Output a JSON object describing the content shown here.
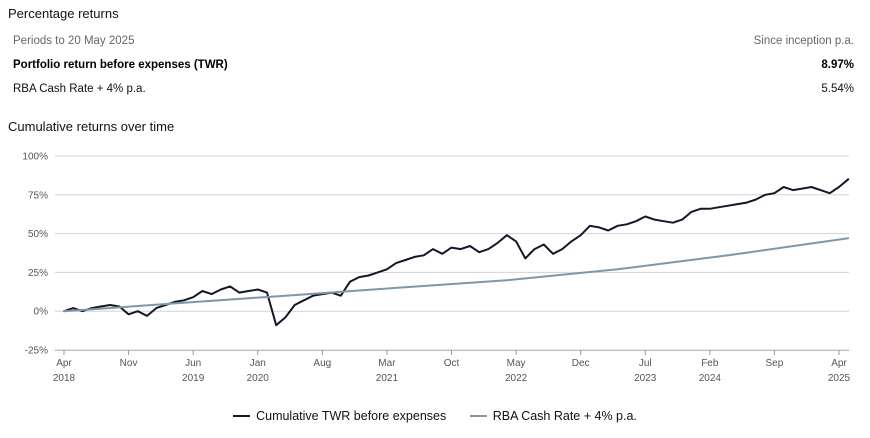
{
  "header": {
    "title": "Percentage returns",
    "period_label": "Periods to 20 May 2025",
    "column_label": "Since inception p.a."
  },
  "rows": [
    {
      "label": "Portfolio return before expenses (TWR)",
      "value": "8.97%"
    },
    {
      "label": "RBA Cash Rate + 4% p.a.",
      "value": "5.54%"
    }
  ],
  "chart_title": "Cumulative returns over time",
  "colors": {
    "twr": "#111827",
    "rba": "#7f98a8",
    "grid": "#d3d3d3"
  },
  "chart_data": {
    "type": "line",
    "title": "Cumulative returns over time",
    "xlabel": "",
    "ylabel": "",
    "ylim": [
      -25,
      100
    ],
    "y_ticks": [
      100,
      75,
      50,
      25,
      0,
      -25
    ],
    "y_tick_labels": [
      "100%",
      "75%",
      "50%",
      "25%",
      "0%",
      "-25%"
    ],
    "x_ticks": [
      {
        "date": "2018-04",
        "label": "Apr",
        "year": "2018"
      },
      {
        "date": "2018-11",
        "label": "Nov",
        "year": ""
      },
      {
        "date": "2019-06",
        "label": "Jun",
        "year": "2019"
      },
      {
        "date": "2020-01",
        "label": "Jan",
        "year": "2020"
      },
      {
        "date": "2020-08",
        "label": "Aug",
        "year": ""
      },
      {
        "date": "2021-03",
        "label": "Mar",
        "year": "2021"
      },
      {
        "date": "2021-10",
        "label": "Oct",
        "year": ""
      },
      {
        "date": "2022-05",
        "label": "May",
        "year": "2022"
      },
      {
        "date": "2022-12",
        "label": "Dec",
        "year": ""
      },
      {
        "date": "2023-07",
        "label": "Jul",
        "year": "2023"
      },
      {
        "date": "2024-02",
        "label": "Feb",
        "year": "2024"
      },
      {
        "date": "2024-09",
        "label": "Sep",
        "year": ""
      },
      {
        "date": "2025-04",
        "label": "Apr",
        "year": "2025"
      }
    ],
    "grid": true,
    "legend_position": "bottom",
    "series": [
      {
        "name": "Cumulative TWR before expenses",
        "color": "#111827",
        "points": [
          [
            "2018-04",
            0
          ],
          [
            "2018-05",
            2
          ],
          [
            "2018-06",
            0
          ],
          [
            "2018-07",
            2
          ],
          [
            "2018-08",
            3
          ],
          [
            "2018-09",
            4
          ],
          [
            "2018-10",
            3
          ],
          [
            "2018-11",
            -2
          ],
          [
            "2018-12",
            0
          ],
          [
            "2019-01",
            -3
          ],
          [
            "2019-02",
            2
          ],
          [
            "2019-03",
            4
          ],
          [
            "2019-04",
            6
          ],
          [
            "2019-05",
            7
          ],
          [
            "2019-06",
            9
          ],
          [
            "2019-07",
            13
          ],
          [
            "2019-08",
            11
          ],
          [
            "2019-09",
            14
          ],
          [
            "2019-10",
            16
          ],
          [
            "2019-11",
            12
          ],
          [
            "2019-12",
            13
          ],
          [
            "2020-01",
            14
          ],
          [
            "2020-02",
            12
          ],
          [
            "2020-03",
            -9
          ],
          [
            "2020-04",
            -4
          ],
          [
            "2020-05",
            4
          ],
          [
            "2020-06",
            7
          ],
          [
            "2020-07",
            10
          ],
          [
            "2020-08",
            11
          ],
          [
            "2020-09",
            12
          ],
          [
            "2020-10",
            10
          ],
          [
            "2020-11",
            19
          ],
          [
            "2020-12",
            22
          ],
          [
            "2021-01",
            23
          ],
          [
            "2021-02",
            25
          ],
          [
            "2021-03",
            27
          ],
          [
            "2021-04",
            31
          ],
          [
            "2021-05",
            33
          ],
          [
            "2021-06",
            35
          ],
          [
            "2021-07",
            36
          ],
          [
            "2021-08",
            40
          ],
          [
            "2021-09",
            37
          ],
          [
            "2021-10",
            41
          ],
          [
            "2021-11",
            40
          ],
          [
            "2021-12",
            42
          ],
          [
            "2022-01",
            38
          ],
          [
            "2022-02",
            40
          ],
          [
            "2022-03",
            44
          ],
          [
            "2022-04",
            49
          ],
          [
            "2022-05",
            45
          ],
          [
            "2022-06",
            34
          ],
          [
            "2022-07",
            40
          ],
          [
            "2022-08",
            43
          ],
          [
            "2022-09",
            37
          ],
          [
            "2022-10",
            40
          ],
          [
            "2022-11",
            45
          ],
          [
            "2022-12",
            49
          ],
          [
            "2023-01",
            55
          ],
          [
            "2023-02",
            54
          ],
          [
            "2023-03",
            52
          ],
          [
            "2023-04",
            55
          ],
          [
            "2023-05",
            56
          ],
          [
            "2023-06",
            58
          ],
          [
            "2023-07",
            61
          ],
          [
            "2023-08",
            59
          ],
          [
            "2023-09",
            58
          ],
          [
            "2023-10",
            57
          ],
          [
            "2023-11",
            59
          ],
          [
            "2023-12",
            64
          ],
          [
            "2024-01",
            66
          ],
          [
            "2024-02",
            66
          ],
          [
            "2024-03",
            67
          ],
          [
            "2024-04",
            68
          ],
          [
            "2024-05",
            69
          ],
          [
            "2024-06",
            70
          ],
          [
            "2024-07",
            72
          ],
          [
            "2024-08",
            75
          ],
          [
            "2024-09",
            76
          ],
          [
            "2024-10",
            80
          ],
          [
            "2024-11",
            78
          ],
          [
            "2024-12",
            79
          ],
          [
            "2025-01",
            80
          ],
          [
            "2025-02",
            78
          ],
          [
            "2025-03",
            76
          ],
          [
            "2025-04",
            80
          ],
          [
            "2025-05",
            85
          ]
        ]
      },
      {
        "name": "RBA Cash Rate + 4% p.a.",
        "color": "#7f98a8",
        "points": [
          [
            "2018-04",
            0
          ],
          [
            "2019-04",
            5
          ],
          [
            "2020-04",
            10
          ],
          [
            "2021-04",
            15
          ],
          [
            "2022-04",
            20
          ],
          [
            "2023-04",
            27
          ],
          [
            "2024-04",
            36
          ],
          [
            "2025-05",
            47
          ]
        ]
      }
    ]
  }
}
